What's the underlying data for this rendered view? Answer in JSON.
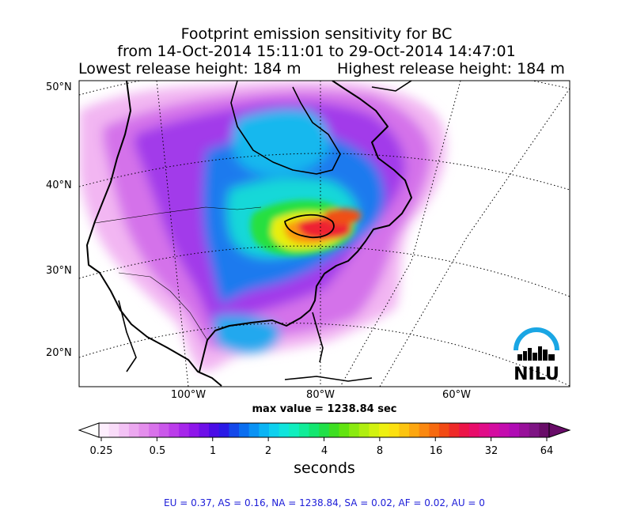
{
  "title": {
    "line1": "Footprint emission sensitivity for BC",
    "line2": "from 14-Oct-2014 15:11:01 to 29-Oct-2014 14:47:01",
    "lowest": "Lowest release height: 184 m",
    "highest": "Highest release height: 184 m"
  },
  "map": {
    "lat_labels": [
      "50°N",
      "40°N",
      "30°N",
      "20°N"
    ],
    "lon_labels": [
      "100°W",
      "80°W",
      "60°W"
    ],
    "max_value": "max value = 1238.84 sec",
    "logo_text": "NILU"
  },
  "colorbar": {
    "ticks": [
      "0.25",
      "0.5",
      "1",
      "2",
      "4",
      "8",
      "16",
      "32",
      "64"
    ],
    "unit": "seconds",
    "colors": [
      "#fdeefd",
      "#f9dcf9",
      "#f3c2f5",
      "#eca8f0",
      "#e48eec",
      "#d872ea",
      "#ca58ea",
      "#bb3cea",
      "#a626ea",
      "#8e16ea",
      "#6e10e8",
      "#4a0ce6",
      "#2a1ae6",
      "#1448ea",
      "#0a6ef0",
      "#0a92f4",
      "#0ab4f4",
      "#0ed0ee",
      "#10e4dc",
      "#10eebe",
      "#10ec98",
      "#12e670",
      "#20e048",
      "#3ede22",
      "#62e410",
      "#8aea10",
      "#b0ee10",
      "#d2f210",
      "#eef010",
      "#fce010",
      "#fcc410",
      "#fca610",
      "#fa8810",
      "#f66a10",
      "#f24a14",
      "#ee2a28",
      "#ec1448",
      "#e80c6a",
      "#e00c88",
      "#d40ca0",
      "#c40cae",
      "#b00cb4",
      "#98109a",
      "#7e1484",
      "#680c68"
    ]
  },
  "regions": "EU = 0.37,  AS = 0.16,  NA = 1238.84,  SA = 0.02,  AF = 0.02,  AU = 0"
}
